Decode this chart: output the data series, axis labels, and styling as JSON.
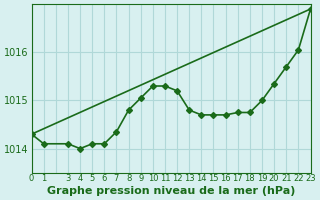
{
  "xlabel": "Graphe pression niveau de la mer (hPa)",
  "background_color": "#d8f0f0",
  "line_color": "#1a6b1a",
  "grid_color": "#b0d8d8",
  "x_values": [
    0,
    1,
    3,
    4,
    5,
    6,
    7,
    8,
    9,
    10,
    11,
    12,
    13,
    14,
    15,
    16,
    17,
    18,
    19,
    20,
    21,
    22,
    23
  ],
  "y_values": [
    1014.3,
    1014.1,
    1014.1,
    1014.0,
    1014.1,
    1014.1,
    1014.35,
    1014.8,
    1015.05,
    1015.3,
    1015.3,
    1015.2,
    1014.8,
    1014.7,
    1014.7,
    1014.7,
    1014.75,
    1014.75,
    1015.0,
    1015.35,
    1015.7,
    1016.05,
    1016.9
  ],
  "ylim": [
    1013.5,
    1017.0
  ],
  "xlim": [
    0,
    23
  ],
  "yticks": [
    1014,
    1015,
    1016
  ],
  "marker": "D",
  "markersize": 3,
  "linewidth": 1.2,
  "fontsize_xlabel": 8,
  "fontsize_ytick": 7,
  "fontsize_xtick": 6
}
